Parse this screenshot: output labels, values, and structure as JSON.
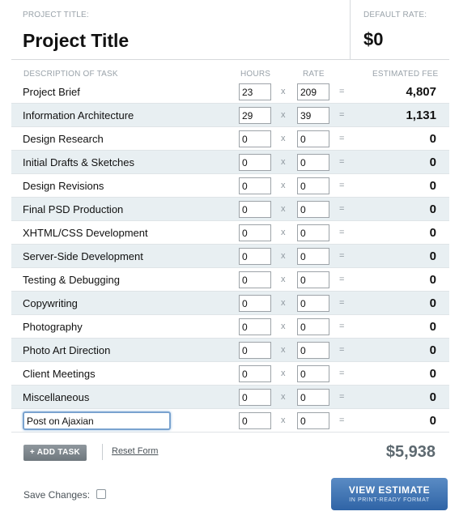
{
  "header": {
    "project_title_label": "PROJECT TITLE:",
    "project_title_value": "Project Title",
    "default_rate_label": "DEFAULT RATE:",
    "default_rate_value": "$0"
  },
  "columns": {
    "description": "DESCRIPTION OF TASK",
    "hours": "HOURS",
    "rate": "RATE",
    "fee": "ESTIMATED FEE"
  },
  "operators": {
    "times": "x",
    "equals": "="
  },
  "tasks": [
    {
      "name": "Project Brief",
      "hours": "23",
      "rate": "209",
      "fee": "4,807"
    },
    {
      "name": "Information Architecture",
      "hours": "29",
      "rate": "39",
      "fee": "1,131"
    },
    {
      "name": "Design Research",
      "hours": "0",
      "rate": "0",
      "fee": "0"
    },
    {
      "name": "Initial Drafts & Sketches",
      "hours": "0",
      "rate": "0",
      "fee": "0"
    },
    {
      "name": "Design Revisions",
      "hours": "0",
      "rate": "0",
      "fee": "0"
    },
    {
      "name": "Final PSD Production",
      "hours": "0",
      "rate": "0",
      "fee": "0"
    },
    {
      "name": "XHTML/CSS Development",
      "hours": "0",
      "rate": "0",
      "fee": "0"
    },
    {
      "name": "Server-Side Development",
      "hours": "0",
      "rate": "0",
      "fee": "0"
    },
    {
      "name": "Testing & Debugging",
      "hours": "0",
      "rate": "0",
      "fee": "0"
    },
    {
      "name": "Copywriting",
      "hours": "0",
      "rate": "0",
      "fee": "0"
    },
    {
      "name": "Photography",
      "hours": "0",
      "rate": "0",
      "fee": "0"
    },
    {
      "name": "Photo Art Direction",
      "hours": "0",
      "rate": "0",
      "fee": "0"
    },
    {
      "name": "Client Meetings",
      "hours": "0",
      "rate": "0",
      "fee": "0"
    },
    {
      "name": "Miscellaneous",
      "hours": "0",
      "rate": "0",
      "fee": "0"
    }
  ],
  "new_task": {
    "name": "Post on Ajaxian",
    "hours": "0",
    "rate": "0",
    "fee": "0"
  },
  "footer": {
    "add_task_label": "+ ADD TASK",
    "reset_label": "Reset Form",
    "total": "$5,938",
    "save_label": "Save Changes:",
    "view_estimate_label": "VIEW ESTIMATE",
    "view_estimate_sub": "IN PRINT-READY FORMAT"
  },
  "colors": {
    "alt_row": "#e8eff2",
    "button_blue": "#2f64a6",
    "button_gray": "#6f787e"
  }
}
